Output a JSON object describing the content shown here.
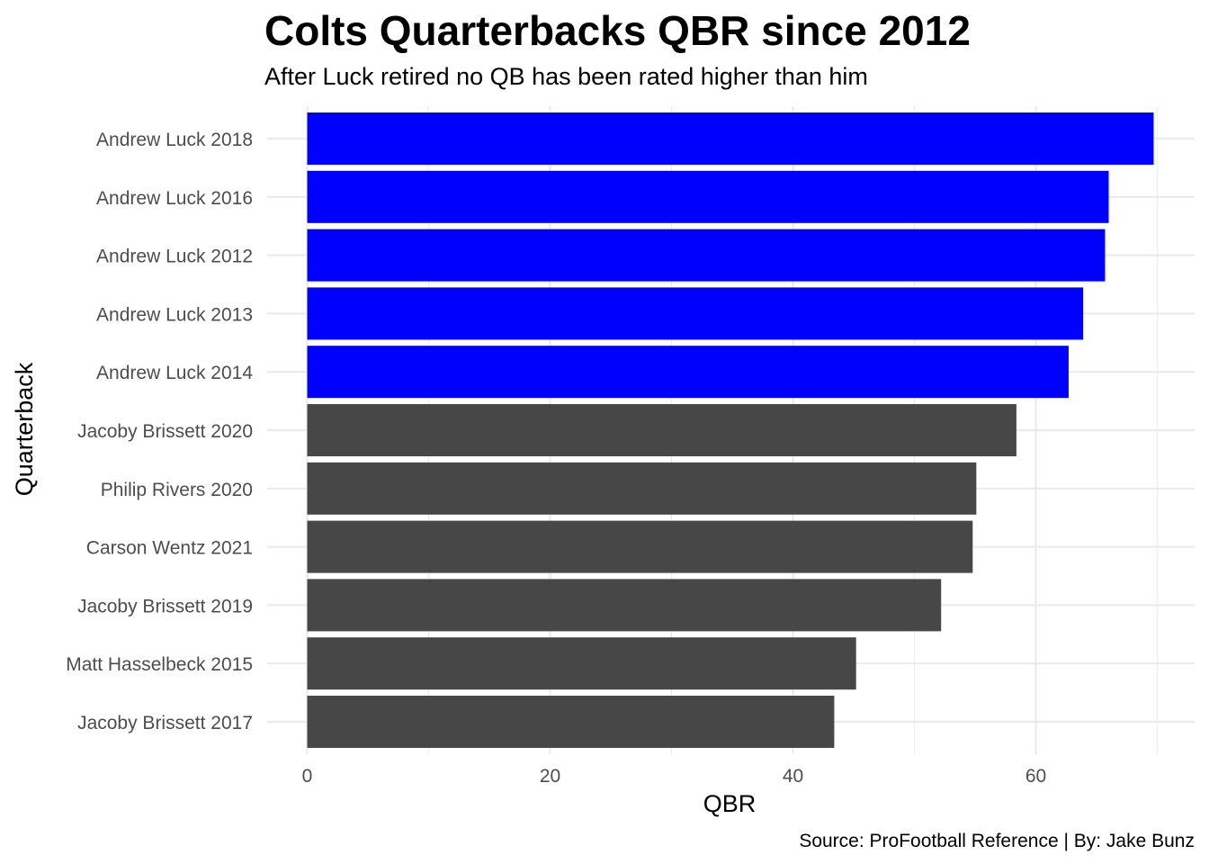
{
  "chart_data": {
    "type": "bar",
    "orientation": "horizontal",
    "title": "Colts Quarterbacks QBR since 2012",
    "subtitle": "After Luck retired no QB has been rated higher than him",
    "caption": "Source: ProFootball Reference | By: Jake Bunz",
    "xlabel": "QBR",
    "ylabel": "Quarterback",
    "xlim": [
      0,
      73
    ],
    "x_ticks": [
      0,
      20,
      40,
      60
    ],
    "x_minor_ticks": [
      10,
      30,
      50,
      70
    ],
    "grid": true,
    "legend": "none",
    "colors": {
      "highlight": "#0000ff",
      "default": "#474747",
      "grid": "#ebebeb",
      "tick_text": "#4d4d4d"
    },
    "categories": [
      "Andrew Luck 2018",
      "Andrew Luck 2016",
      "Andrew Luck 2012",
      "Andrew Luck 2013",
      "Andrew Luck 2014",
      "Jacoby Brissett 2020",
      "Philip Rivers 2020",
      "Carson Wentz 2021",
      "Jacoby Brissett 2019",
      "Matt Hasselbeck 2015",
      "Jacoby Brissett 2017"
    ],
    "values": [
      69.7,
      66.0,
      65.7,
      63.9,
      62.7,
      58.4,
      55.1,
      54.8,
      52.2,
      45.2,
      43.4
    ],
    "highlighted": [
      true,
      true,
      true,
      true,
      true,
      false,
      false,
      false,
      false,
      false,
      false
    ]
  }
}
